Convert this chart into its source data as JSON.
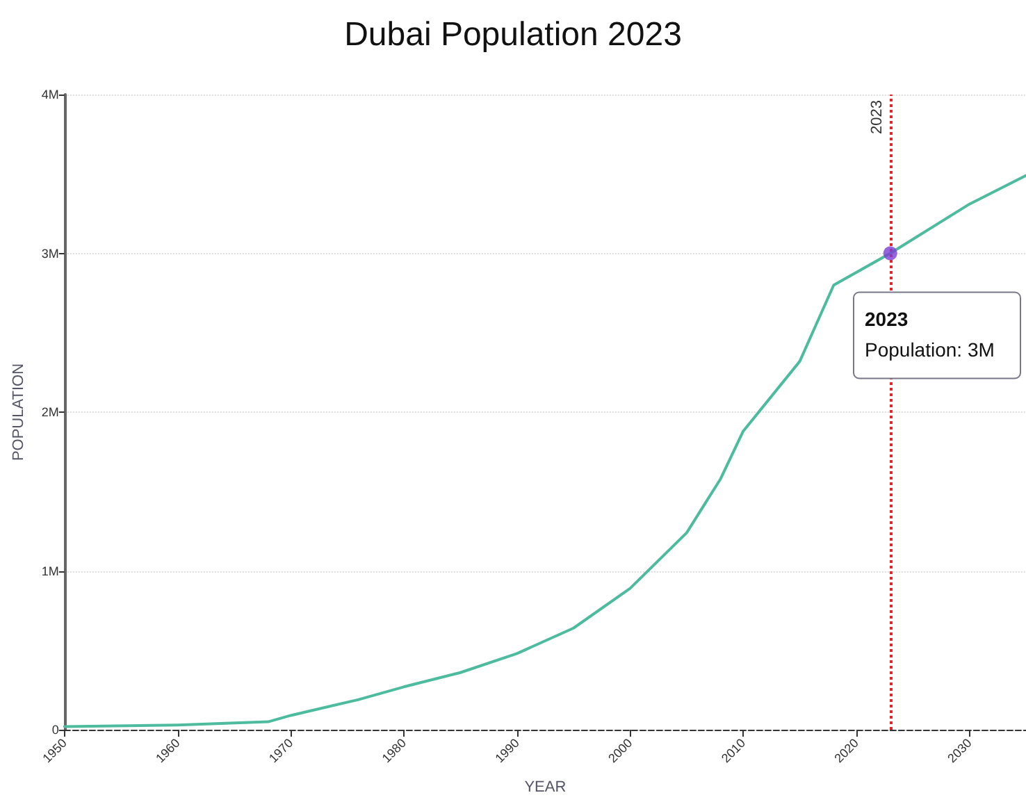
{
  "chart_data": {
    "type": "line",
    "title": "Dubai Population 2023",
    "xlabel": "YEAR",
    "ylabel": "POPULATION",
    "x": [
      1950,
      1960,
      1968,
      1970,
      1973,
      1976,
      1980,
      1985,
      1990,
      1995,
      2000,
      2005,
      2008,
      2010,
      2015,
      2018,
      2023,
      2030,
      2035
    ],
    "series": [
      {
        "color": "#4dbb9d",
        "marker": "none",
        "values": [
          20000,
          30000,
          50000,
          90000,
          140000,
          190000,
          270000,
          360000,
          480000,
          640000,
          890000,
          1240000,
          1580000,
          1880000,
          2320000,
          2800000,
          3000000,
          3310000,
          3490000
        ]
      },
      {
        "type": "scatter",
        "x": [
          2023
        ],
        "color": "#7a3fd6",
        "marker": "circle",
        "values": [
          3000000
        ]
      }
    ],
    "xlim": [
      1950,
      2035
    ],
    "xticks": [
      1950,
      1960,
      1970,
      1980,
      1990,
      2000,
      2010,
      2020,
      2030
    ],
    "ylim": [
      0,
      4000000
    ],
    "yticks": [
      {
        "value": 0,
        "label": "0"
      },
      {
        "value": 1000000,
        "label": "1M"
      },
      {
        "value": 2000000,
        "label": "2M"
      },
      {
        "value": 3000000,
        "label": "3M"
      },
      {
        "value": 4000000,
        "label": "4M"
      }
    ],
    "grid": "y",
    "line_style": "solid",
    "ref_lines": [
      {
        "axis": "x",
        "value": 2023,
        "label": "2023",
        "color": "#ee2222",
        "line_style": "dotted"
      }
    ],
    "annotations": [
      "2023",
      "Population: 3M"
    ]
  }
}
